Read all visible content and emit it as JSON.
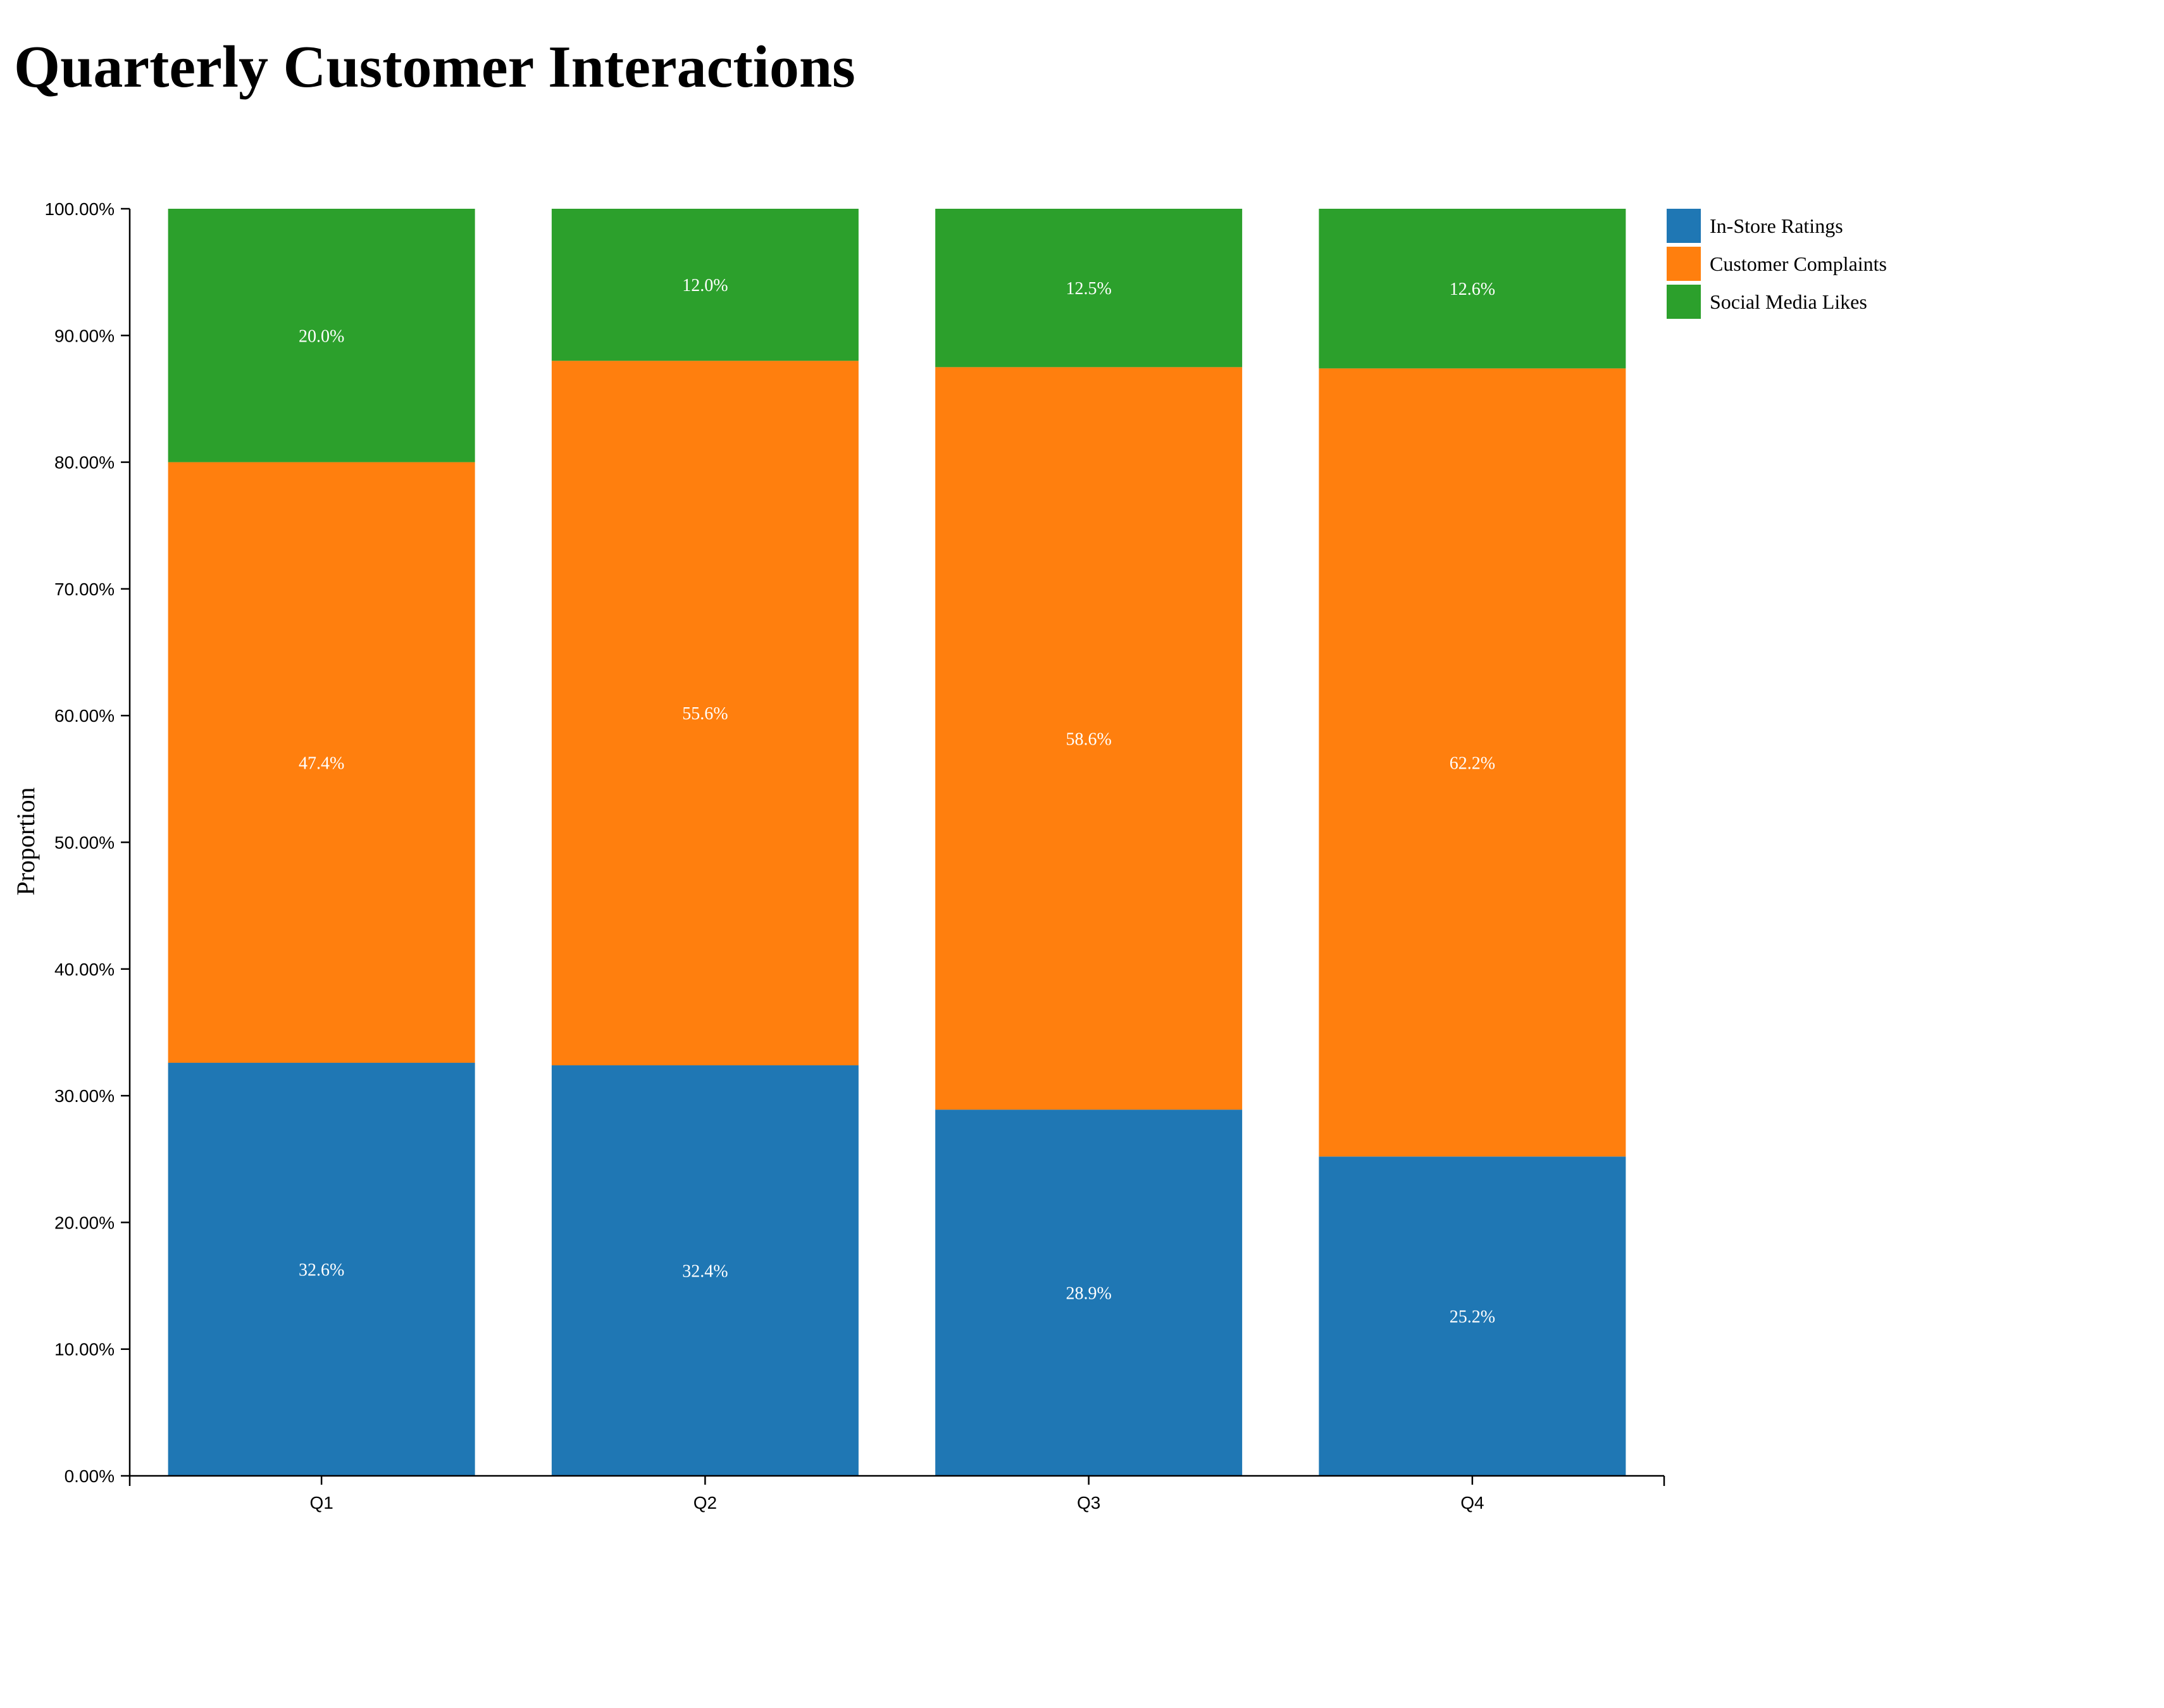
{
  "chart_data": {
    "type": "bar",
    "stacked": true,
    "normalized": true,
    "title": "Quarterly Customer Interactions",
    "xlabel": "",
    "ylabel": "Proportion",
    "ylim": [
      0,
      1
    ],
    "y_ticks": [
      "0.00%",
      "10.00%",
      "20.00%",
      "30.00%",
      "40.00%",
      "50.00%",
      "60.00%",
      "70.00%",
      "80.00%",
      "90.00%",
      "100.00%"
    ],
    "categories": [
      "Q1",
      "Q2",
      "Q3",
      "Q4"
    ],
    "series": [
      {
        "name": "In-Store Ratings",
        "color": "#1f77b4",
        "values": [
          0.326,
          0.324,
          0.289,
          0.252
        ],
        "labels": [
          "32.6%",
          "32.4%",
          "28.9%",
          "25.2%"
        ]
      },
      {
        "name": "Customer Complaints",
        "color": "#ff7f0e",
        "values": [
          0.474,
          0.556,
          0.586,
          0.622
        ],
        "labels": [
          "47.4%",
          "55.6%",
          "58.6%",
          "62.2%"
        ]
      },
      {
        "name": "Social Media Likes",
        "color": "#2ca02c",
        "values": [
          0.2,
          0.12,
          0.125,
          0.126
        ],
        "labels": [
          "20.0%",
          "12.0%",
          "12.5%",
          "12.6%"
        ]
      }
    ],
    "legend": "top-right",
    "grid": false
  }
}
